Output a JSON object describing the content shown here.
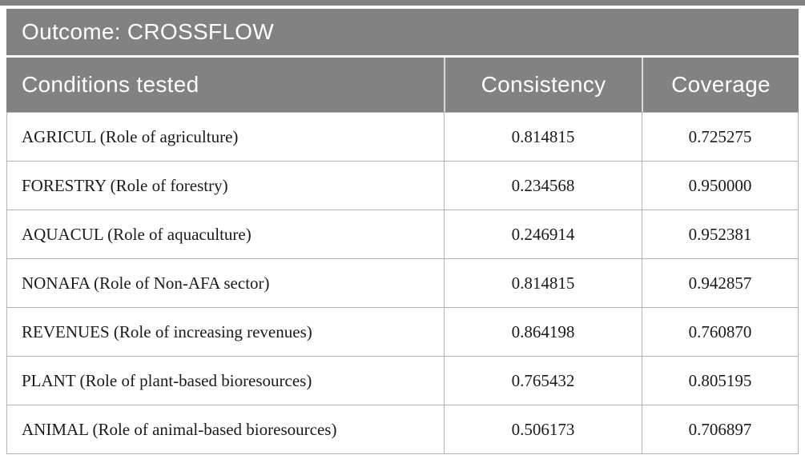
{
  "chart_data": {
    "type": "table",
    "title": "Outcome: CROSSFLOW",
    "columns": [
      "Conditions tested",
      "Consistency",
      "Coverage"
    ],
    "rows": [
      [
        "AGRICUL (Role of agriculture)",
        "0.814815",
        "0.725275"
      ],
      [
        "FORESTRY (Role of forestry)",
        "0.234568",
        "0.950000"
      ],
      [
        "AQUACUL (Role of aquaculture)",
        "0.246914",
        "0.952381"
      ],
      [
        "NONAFA (Role of Non-AFA sector)",
        "0.814815",
        "0.942857"
      ],
      [
        "REVENUES (Role of increasing revenues)",
        "0.864198",
        "0.760870"
      ],
      [
        "PLANT (Role of plant-based bioresources)",
        "0.765432",
        "0.805195"
      ],
      [
        "ANIMAL (Role of animal-based bioresources)",
        "0.506173",
        "0.706897"
      ]
    ]
  },
  "colors": {
    "header_bg": "#828282",
    "header_text": "#ffffff",
    "body_text": "#1a1a1a",
    "border": "#b3b3b3"
  }
}
